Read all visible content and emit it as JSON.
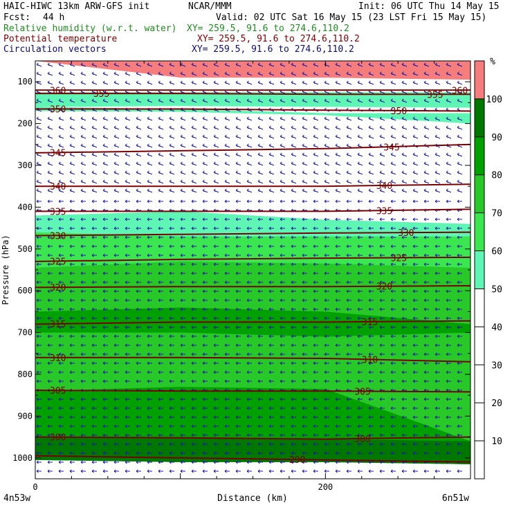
{
  "header": {
    "model": "HAIC-HIWC 13km ARW-GFS init",
    "org": "NCAR/MMM",
    "init": "Init: 06 UTC Thu 14 May 15",
    "fcst_label": "Fcst:",
    "fcst_value": "44 h",
    "valid": "Valid: 02 UTC Sat 16 May 15 (23 LST Fri 15 May 15)"
  },
  "fields": [
    {
      "name": "Relative humidity (w.r.t. water)",
      "xy": "XY= 259.5, 91.6 to 274.6,110.2",
      "color": "#1e8c1e"
    },
    {
      "name": "Potential temperature",
      "xy": "XY= 259.5, 91.6 to 274.6,110.2",
      "color": "#7a0000"
    },
    {
      "name": "Circulation vectors",
      "xy": "XY= 259.5, 91.6 to 274.6,110.2",
      "color": "#0a0a78"
    }
  ],
  "chart_data": {
    "type": "heatmap",
    "xlabel": "Distance (km)",
    "ylabel": "Pressure (hPa)",
    "xlim": [
      0,
      300
    ],
    "ylim": [
      1050,
      50
    ],
    "x_ticks": [
      0,
      200
    ],
    "y_ticks": [
      100,
      200,
      300,
      400,
      500,
      600,
      700,
      800,
      900,
      1000
    ],
    "x_end_labels": [
      "4n53w",
      "6n51w"
    ],
    "colorbar": {
      "unit": "%",
      "levels": [
        10,
        20,
        30,
        40,
        50,
        60,
        70,
        80,
        90,
        100
      ],
      "fill_colors": [
        "#ffffff",
        "#ffffff",
        "#ffffff",
        "#ffffff",
        "#ffffff",
        "#5ff5b4",
        "#3ce650",
        "#28c828",
        "#00a000",
        "#007800",
        "#f57d7d"
      ]
    },
    "rh_regions": [
      {
        "p_top": [
          50,
          50,
          50,
          50
        ],
        "p_bot": [
          50,
          90,
          90,
          95
        ],
        "value": 105
      },
      {
        "p_top": [
          125,
          125,
          125,
          125
        ],
        "p_bot": [
          160,
          158,
          160,
          162
        ],
        "value": 55
      },
      {
        "p_top": [
          160,
          165,
          175,
          175
        ],
        "p_bot": [
          170,
          172,
          180,
          200
        ],
        "value": 55
      },
      {
        "p_top": [
          420,
          410,
          430,
          440
        ],
        "p_bot": [
          1005,
          1010,
          1010,
          1015
        ],
        "value": 55
      },
      {
        "p_top": [
          460,
          470,
          470,
          470
        ],
        "p_bot": [
          1005,
          1010,
          1010,
          1015
        ],
        "value": 65
      },
      {
        "p_top": [
          545,
          530,
          535,
          545
        ],
        "p_bot": [
          1005,
          1010,
          1010,
          1015
        ],
        "value": 75
      },
      {
        "p_top": [
          650,
          640,
          650,
          680
        ],
        "p_bot": [
          700,
          700,
          710,
          700
        ],
        "value": 85
      },
      {
        "p_top": [
          840,
          830,
          835,
          960
        ],
        "p_bot": [
          1005,
          1010,
          1010,
          1015
        ],
        "value": 85
      },
      {
        "p_top": [
          950,
          950,
          955,
          960
        ],
        "p_bot": [
          1005,
          1010,
          1010,
          1015
        ],
        "value": 95
      }
    ],
    "theta_contours": [
      {
        "label": "360",
        "p": [
          120,
          120,
          120,
          120
        ],
        "label_x": [
          10,
          287
        ]
      },
      {
        "label": "355",
        "p": [
          128,
          128,
          130,
          130
        ],
        "label_x": [
          40,
          270
        ]
      },
      {
        "label": "350",
        "p": [
          165,
          165,
          168,
          170
        ],
        "label_x": [
          10,
          245
        ]
      },
      {
        "label": "345",
        "p": [
          270,
          265,
          260,
          250
        ],
        "label_x": [
          10,
          240
        ]
      },
      {
        "label": "340",
        "p": [
          350,
          350,
          350,
          345
        ],
        "label_x": [
          10,
          235
        ]
      },
      {
        "label": "335",
        "p": [
          410,
          410,
          410,
          405
        ],
        "label_x": [
          10,
          235
        ]
      },
      {
        "label": "330",
        "p": [
          468,
          465,
          462,
          460
        ],
        "label_x": [
          10,
          250
        ]
      },
      {
        "label": "325",
        "p": [
          530,
          525,
          522,
          520
        ],
        "label_x": [
          10,
          245
        ]
      },
      {
        "label": "320",
        "p": [
          592,
          590,
          590,
          588
        ],
        "label_x": [
          10,
          235
        ]
      },
      {
        "label": "315",
        "p": [
          680,
          675,
          675,
          672
        ],
        "label_x": [
          10,
          225
        ]
      },
      {
        "label": "310",
        "p": [
          760,
          760,
          762,
          770
        ],
        "label_x": [
          10,
          225
        ]
      },
      {
        "label": "305",
        "p": [
          838,
          840,
          840,
          842
        ],
        "label_x": [
          10,
          220
        ]
      },
      {
        "label": "300",
        "p": [
          950,
          952,
          955,
          950
        ],
        "label_x": [
          10,
          220
        ]
      },
      {
        "label": "290",
        "p": [
          995,
          1000,
          1005,
          1010
        ],
        "label_x": [
          175
        ]
      }
    ]
  }
}
